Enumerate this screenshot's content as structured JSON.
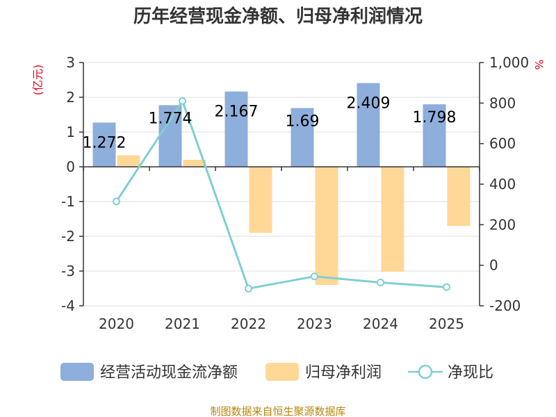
{
  "chart_data": {
    "type": "bar",
    "title": "历年经营现金净额、归母净利润情况",
    "categories": [
      "2020",
      "2021",
      "2022",
      "2023",
      "2024",
      "2025"
    ],
    "series": [
      {
        "name": "经营活动现金流净额",
        "type": "bar",
        "axis": "left",
        "color": "#8eaedb",
        "values": [
          1.272,
          1.774,
          2.167,
          1.69,
          2.409,
          1.798
        ],
        "labels": [
          "1.272",
          "1.774",
          "2.167",
          "1.69",
          "2.409",
          "1.798"
        ]
      },
      {
        "name": "归母净利润",
        "type": "bar",
        "axis": "left",
        "color": "#ffd897",
        "values": [
          0.33,
          0.2,
          -1.9,
          -3.4,
          -3.02,
          -1.7
        ]
      },
      {
        "name": "净现比",
        "type": "line",
        "axis": "right",
        "color": "#7fcfd3",
        "values": [
          315,
          810,
          -115,
          -55,
          -85,
          -108
        ]
      }
    ],
    "y_left": {
      "unit": "(亿元)",
      "ylim": [
        -4,
        3
      ],
      "ticks": [
        "3",
        "2",
        "1",
        "0",
        "-1",
        "-2",
        "-3",
        "-4"
      ]
    },
    "y_right": {
      "unit": "%",
      "ylim": [
        -200,
        1000
      ],
      "ticks": [
        "1,000",
        "800",
        "600",
        "400",
        "200",
        "0",
        "-200"
      ]
    },
    "grid": true,
    "legend_position": "bottom"
  },
  "source": "制图数据来自恒生聚源数据库"
}
